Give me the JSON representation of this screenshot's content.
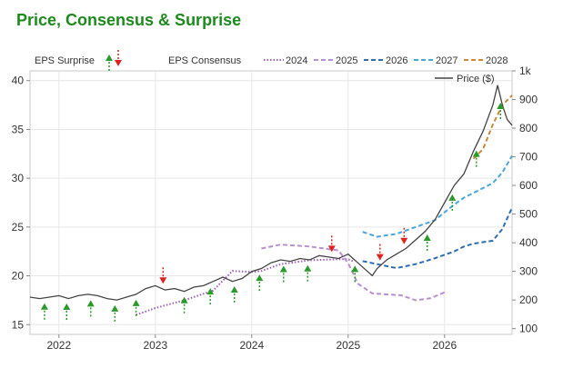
{
  "chart_data": {
    "type": "line",
    "title": "Price, Consensus & Surprise",
    "x_ticks": [
      "2022",
      "2023",
      "2024",
      "2025",
      "2026"
    ],
    "x_range": [
      2021.7,
      2026.7
    ],
    "left_axis": {
      "ticks": [
        15,
        20,
        25,
        30,
        35,
        40
      ],
      "range": [
        14,
        41
      ]
    },
    "right_axis": {
      "ticks": [
        "100",
        "200",
        "300",
        "400",
        "500",
        "600",
        "700",
        "800",
        "900",
        "1k"
      ],
      "range": [
        80,
        1000
      ]
    },
    "legend": {
      "surprise_label": "EPS Surprise",
      "surprise_up_color": "#2a9a2a",
      "surprise_down_color": "#dd2222",
      "consensus_label": "EPS Consensus",
      "price_label": "Price ($)"
    },
    "series": [
      {
        "name": "2024",
        "color": "#9b5fb5",
        "dash": "dot",
        "x": [
          2022.8,
          2023.0,
          2023.3,
          2023.6,
          2023.8,
          2024.0,
          2024.1,
          2024.3,
          2024.6,
          2024.9,
          2025.0,
          2025.05
        ],
        "y": [
          16.0,
          16.7,
          17.5,
          18.5,
          20.5,
          20.4,
          20.5,
          21.2,
          21.6,
          21.7,
          21.7,
          21.5
        ]
      },
      {
        "name": "2025",
        "color": "#b98fd0",
        "dash": "dash",
        "x": [
          2024.1,
          2024.3,
          2024.6,
          2024.9,
          2025.0,
          2025.1,
          2025.25,
          2025.55,
          2025.7,
          2025.85,
          2026.0
        ],
        "y": [
          22.8,
          23.2,
          23.0,
          22.6,
          21.3,
          19.2,
          18.2,
          18.0,
          17.5,
          17.7,
          18.3
        ]
      },
      {
        "name": "2026",
        "color": "#2e6eb0",
        "dash": "dash",
        "x": [
          2025.15,
          2025.3,
          2025.5,
          2025.7,
          2025.9,
          2026.1,
          2026.2,
          2026.3,
          2026.5,
          2026.6,
          2026.7
        ],
        "y": [
          21.5,
          21.2,
          20.8,
          21.2,
          21.8,
          22.5,
          23.0,
          23.3,
          23.6,
          24.8,
          27.0
        ]
      },
      {
        "name": "2027",
        "color": "#4aa6d8",
        "dash": "dash",
        "x": [
          2025.15,
          2025.3,
          2025.5,
          2025.7,
          2025.9,
          2026.0,
          2026.1,
          2026.2,
          2026.3,
          2026.5,
          2026.6,
          2026.7
        ],
        "y": [
          24.5,
          24.0,
          24.3,
          25.0,
          25.7,
          26.5,
          27.3,
          28.0,
          28.5,
          29.5,
          30.6,
          32.3
        ]
      },
      {
        "name": "2028",
        "color": "#c9873a",
        "dash": "dash",
        "x": [
          2026.3,
          2026.4,
          2026.5,
          2026.6,
          2026.7
        ],
        "y": [
          32.0,
          33.0,
          35.5,
          37.5,
          38.5
        ]
      }
    ],
    "price": {
      "name": "Price ($)",
      "color": "#444444",
      "x": [
        2021.7,
        2021.8,
        2021.9,
        2022.0,
        2022.1,
        2022.2,
        2022.3,
        2022.4,
        2022.5,
        2022.6,
        2022.7,
        2022.8,
        2022.9,
        2023.0,
        2023.1,
        2023.2,
        2023.3,
        2023.4,
        2023.5,
        2023.6,
        2023.7,
        2023.8,
        2023.9,
        2024.0,
        2024.1,
        2024.2,
        2024.3,
        2024.4,
        2024.5,
        2024.6,
        2024.7,
        2024.8,
        2024.9,
        2025.0,
        2025.05,
        2025.1,
        2025.2,
        2025.25,
        2025.3,
        2025.4,
        2025.5,
        2025.6,
        2025.7,
        2025.8,
        2025.9,
        2026.0,
        2026.1,
        2026.2,
        2026.3,
        2026.4,
        2026.5,
        2026.55,
        2026.6,
        2026.65,
        2026.7
      ],
      "y": [
        210,
        205,
        210,
        215,
        205,
        215,
        220,
        215,
        205,
        200,
        210,
        220,
        240,
        250,
        235,
        240,
        230,
        245,
        250,
        265,
        280,
        265,
        275,
        300,
        310,
        330,
        340,
        335,
        345,
        340,
        355,
        350,
        345,
        360,
        345,
        330,
        300,
        285,
        310,
        340,
        360,
        380,
        410,
        440,
        480,
        540,
        600,
        640,
        720,
        790,
        880,
        950,
        880,
        830,
        810
      ]
    },
    "surprises": [
      {
        "x": 2021.85,
        "dir": "up"
      },
      {
        "x": 2022.08,
        "dir": "up"
      },
      {
        "x": 2022.33,
        "dir": "up"
      },
      {
        "x": 2022.58,
        "dir": "up"
      },
      {
        "x": 2022.8,
        "dir": "up"
      },
      {
        "x": 2023.08,
        "dir": "down"
      },
      {
        "x": 2023.3,
        "dir": "up"
      },
      {
        "x": 2023.57,
        "dir": "up"
      },
      {
        "x": 2023.82,
        "dir": "up"
      },
      {
        "x": 2024.08,
        "dir": "up"
      },
      {
        "x": 2024.33,
        "dir": "up"
      },
      {
        "x": 2024.58,
        "dir": "up"
      },
      {
        "x": 2024.83,
        "dir": "down"
      },
      {
        "x": 2025.07,
        "dir": "up"
      },
      {
        "x": 2025.33,
        "dir": "down"
      },
      {
        "x": 2025.58,
        "dir": "down"
      },
      {
        "x": 2025.82,
        "dir": "up"
      },
      {
        "x": 2026.08,
        "dir": "up"
      },
      {
        "x": 2026.33,
        "dir": "up"
      },
      {
        "x": 2026.58,
        "dir": "up"
      }
    ],
    "grid": true
  }
}
